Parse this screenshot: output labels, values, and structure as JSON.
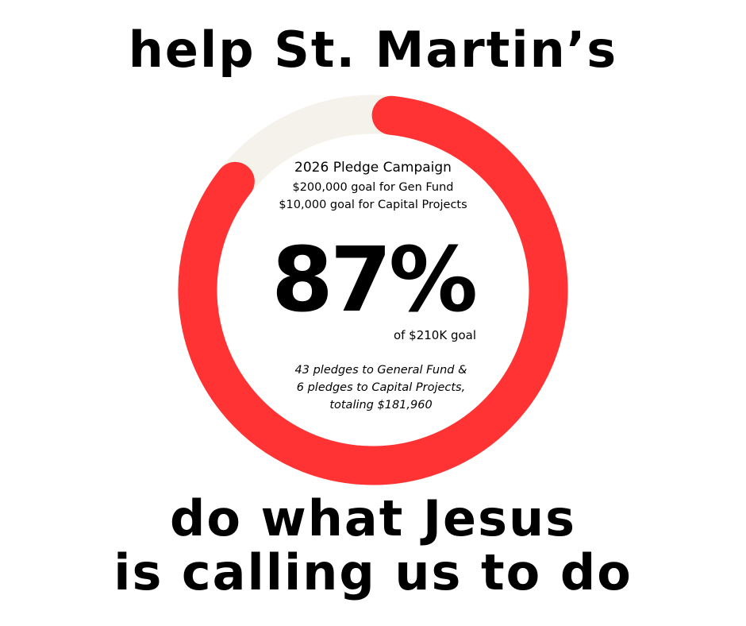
{
  "headline_top": "help St. Martin’s",
  "headline_bottom_line1": "do what Jesus",
  "headline_bottom_line2": "is calling us to do",
  "campaign": {
    "title": "2026 Pledge Campaign",
    "gen_fund_goal": "$200,000 goal for Gen Fund",
    "capital_goal": "$10,000 goal for Capital Projects",
    "percent_label": "87%",
    "percent_value": 87,
    "of_goal": "of $210K goal",
    "pledges_line1": "43 pledges to General Fund &",
    "pledges_line2": "6 pledges to Capital Projects,",
    "pledges_line3": "totaling $181,960"
  },
  "colors": {
    "progress": "#ff3333",
    "track": "#f5f2ec"
  }
}
